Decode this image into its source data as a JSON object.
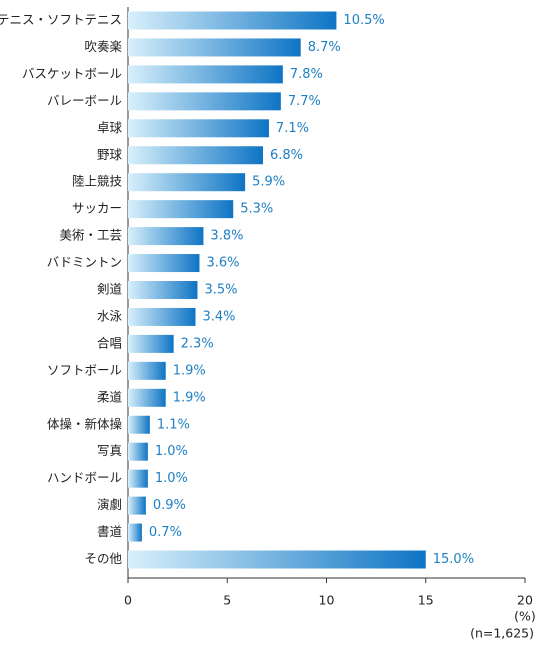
{
  "chart_data": {
    "type": "barh",
    "categories": [
      "テニス・ソフトテニス",
      "吹奏楽",
      "バスケットボール",
      "バレーボール",
      "卓球",
      "野球",
      "陸上競技",
      "サッカー",
      "美術・工芸",
      "バドミントン",
      "剣道",
      "水泳",
      "合唱",
      "ソフトボール",
      "柔道",
      "体操・新体操",
      "写真",
      "ハンドボール",
      "演劇",
      "書道",
      "その他"
    ],
    "values": [
      10.5,
      8.7,
      7.8,
      7.7,
      7.1,
      6.8,
      5.9,
      5.3,
      3.8,
      3.6,
      3.5,
      3.4,
      2.3,
      1.9,
      1.9,
      1.1,
      1.0,
      1.0,
      0.9,
      0.7,
      15.0
    ],
    "value_labels": [
      "10.5%",
      "8.7%",
      "7.8%",
      "7.7%",
      "7.1%",
      "6.8%",
      "5.9%",
      "5.3%",
      "3.8%",
      "3.6%",
      "3.5%",
      "3.4%",
      "2.3%",
      "1.9%",
      "1.9%",
      "1.1%",
      "1.0%",
      "1.0%",
      "0.9%",
      "0.7%",
      "15.0%"
    ],
    "colors": [
      "#d8f0fb",
      "#0e74c4"
    ],
    "label_color": "#1f7fc4",
    "xlim": [
      0,
      20
    ],
    "xticks": [
      0,
      5,
      10,
      15,
      20
    ],
    "x_label": "(%)",
    "note": "(n=1,625)"
  }
}
